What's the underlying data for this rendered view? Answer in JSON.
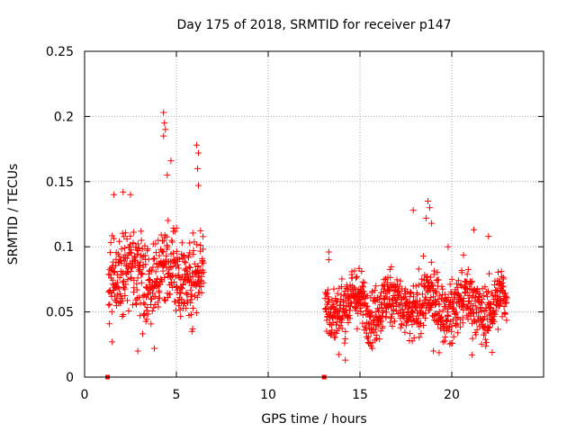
{
  "chart_data": {
    "type": "scatter",
    "title": "Day 175 of 2018, SRMTID for receiver p147",
    "xlabel": "GPS time / hours",
    "ylabel": "SRMTID / TECUs",
    "xlim": [
      0,
      25
    ],
    "ylim": [
      0,
      0.25
    ],
    "xticks": [
      0,
      5,
      10,
      15,
      20
    ],
    "xtick_labels": [
      "0",
      "5",
      "10",
      "15",
      "20"
    ],
    "yticks": [
      0,
      0.05,
      0.1,
      0.15,
      0.2,
      0.25
    ],
    "ytick_labels": [
      "0",
      "0.05",
      "0.1",
      "0.15",
      "0.2",
      "0.25"
    ],
    "grid": true,
    "marker": "plus",
    "color": "#ff0000",
    "series": [
      {
        "name": "SRMTID",
        "segments": [
          {
            "t_start": 1.3,
            "t_end": 6.5,
            "mean": 0.08,
            "spread": 0.028,
            "min": 0.02
          },
          {
            "t_start": 13.1,
            "t_end": 23.0,
            "mean": 0.055,
            "spread": 0.02,
            "min": 0.012
          }
        ],
        "highlights": [
          {
            "x": 4.3,
            "y": 0.203
          },
          {
            "x": 4.35,
            "y": 0.195
          },
          {
            "x": 4.4,
            "y": 0.19
          },
          {
            "x": 4.3,
            "y": 0.185
          },
          {
            "x": 4.7,
            "y": 0.166
          },
          {
            "x": 6.1,
            "y": 0.178
          },
          {
            "x": 6.2,
            "y": 0.172
          },
          {
            "x": 6.15,
            "y": 0.16
          },
          {
            "x": 6.2,
            "y": 0.147
          },
          {
            "x": 1.6,
            "y": 0.14
          },
          {
            "x": 2.1,
            "y": 0.142
          },
          {
            "x": 2.5,
            "y": 0.14
          },
          {
            "x": 4.5,
            "y": 0.155
          },
          {
            "x": 13.3,
            "y": 0.096
          },
          {
            "x": 13.3,
            "y": 0.09
          },
          {
            "x": 17.9,
            "y": 0.128
          },
          {
            "x": 18.7,
            "y": 0.135
          },
          {
            "x": 18.8,
            "y": 0.13
          },
          {
            "x": 18.6,
            "y": 0.122
          },
          {
            "x": 18.9,
            "y": 0.118
          },
          {
            "x": 21.2,
            "y": 0.113
          },
          {
            "x": 22.0,
            "y": 0.108
          },
          {
            "x": 19.8,
            "y": 0.1
          },
          {
            "x": 3.8,
            "y": 0.022
          },
          {
            "x": 2.9,
            "y": 0.02
          },
          {
            "x": 1.5,
            "y": 0.027
          },
          {
            "x": 14.2,
            "y": 0.013
          },
          {
            "x": 19.0,
            "y": 0.02
          },
          {
            "x": 21.1,
            "y": 0.017
          },
          {
            "x": 22.2,
            "y": 0.019
          }
        ],
        "zero_markers": [
          {
            "x": 1.25,
            "y": 0
          },
          {
            "x": 13.05,
            "y": 0
          }
        ]
      }
    ]
  }
}
